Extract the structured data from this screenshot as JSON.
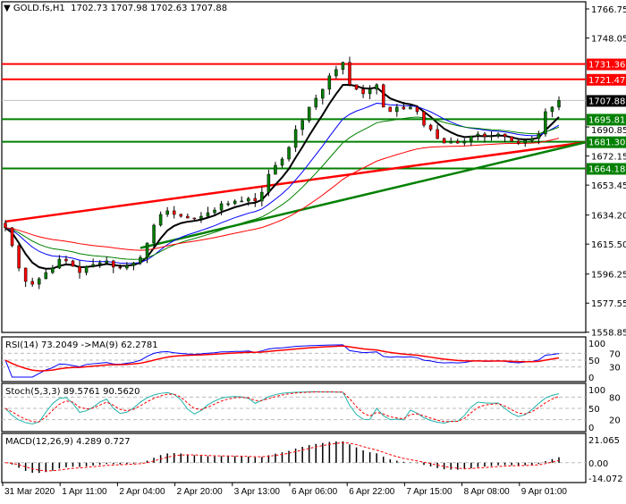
{
  "header": {
    "symbol_menu_icon": "triangle-down-icon",
    "symbol": "GOLD.fs,H1",
    "ohlc": "1702.73 1707.98 1702.63 1707.88"
  },
  "chart_data": {
    "type": "candlestick",
    "symbol": "GOLD.fs",
    "timeframe": "H1",
    "price_axis": {
      "ticks": [
        "1766.75",
        "1748.05",
        "1690.85",
        "1672.15",
        "1653.45",
        "1634.20",
        "1615.50",
        "1596.25",
        "1577.55",
        "1558.85"
      ],
      "range": [
        1558.85,
        1766.75
      ]
    },
    "time_axis": [
      "31 Mar 2020",
      "1 Apr 11:00",
      "2 Apr 04:00",
      "2 Apr 20:00",
      "3 Apr 13:00",
      "6 Apr 06:00",
      "6 Apr 22:00",
      "7 Apr 15:00",
      "8 Apr 08:00",
      "9 Apr 01:00"
    ],
    "closes": [
      1626.0,
      1614.5,
      1600.1,
      1591.5,
      1589.7,
      1593.2,
      1597.2,
      1600.1,
      1605.8,
      1604.7,
      1601.2,
      1597.2,
      1601.2,
      1602.4,
      1603.5,
      1604.7,
      1600.7,
      1600.1,
      1601.8,
      1603.5,
      1607.0,
      1616.2,
      1627.7,
      1634.6,
      1636.9,
      1634.6,
      1633.4,
      1632.3,
      1631.7,
      1633.4,
      1635.7,
      1637.4,
      1641.5,
      1641.5,
      1643.2,
      1643.2,
      1644.9,
      1643.2,
      1648.9,
      1660.4,
      1666.2,
      1670.2,
      1677.7,
      1689.2,
      1694.9,
      1703.6,
      1709.3,
      1715.1,
      1723.7,
      1727.8,
      1732.4,
      1718.0,
      1715.1,
      1712.2,
      1715.1,
      1718.0,
      1703.6,
      1700.7,
      1703.6,
      1702.4,
      1703.6,
      1700.7,
      1692.0,
      1689.2,
      1683.4,
      1680.5,
      1681.7,
      1680.5,
      1681.7,
      1685.1,
      1686.3,
      1684.6,
      1685.1,
      1686.3,
      1684.6,
      1681.7,
      1680.5,
      1682.2,
      1683.4,
      1686.3,
      1700.7,
      1703.6,
      1707.88
    ],
    "levels": [
      {
        "price": 1731.36,
        "label": "1731.36",
        "color": "#ff0000"
      },
      {
        "price": 1721.47,
        "label": "1721.47",
        "color": "#ff0000"
      },
      {
        "price": 1695.81,
        "label": "1695.81",
        "color": "#008000"
      },
      {
        "price": 1681.3,
        "label": "1681.30",
        "color": "#008000"
      },
      {
        "price": 1664.18,
        "label": "1664.18",
        "color": "#008000"
      }
    ],
    "current_price": {
      "price": 1707.88,
      "label": "1707.88",
      "color": "#000000"
    },
    "trendlines": [
      {
        "color": "#ff0000",
        "from": {
          "bar": 0,
          "price": 1630.0
        },
        "to": {
          "bar": 88,
          "price": 1681.0
        }
      },
      {
        "color": "#008000",
        "from": {
          "bar": 20,
          "price": 1613.0
        },
        "to": {
          "bar": 88,
          "price": 1681.0
        }
      }
    ],
    "moving_averages": [
      {
        "color": "#000000"
      },
      {
        "color": "#0000ff"
      },
      {
        "color": "#008000"
      },
      {
        "color": "#ff0000"
      }
    ],
    "indicators": {
      "rsi": {
        "label": "RSI(14) 73.2049  ->MA(9) 62.2781",
        "levels": [
          "100",
          "70",
          "50",
          "30",
          "0"
        ],
        "colors": [
          "#0000ff",
          "#ff0000"
        ]
      },
      "stoch": {
        "label": "Stoch(5,3,3) 89.5761 90.5620",
        "levels": [
          "100",
          "80",
          "50",
          "20",
          "0"
        ],
        "colors": [
          "#20b2aa",
          "#ff0000"
        ]
      },
      "macd": {
        "label": "MACD(12,26,9) 4.289 0.727",
        "levels": [
          "21.065",
          "0.00",
          "-14.072"
        ],
        "range": [
          -14.072,
          21.065
        ]
      }
    }
  }
}
